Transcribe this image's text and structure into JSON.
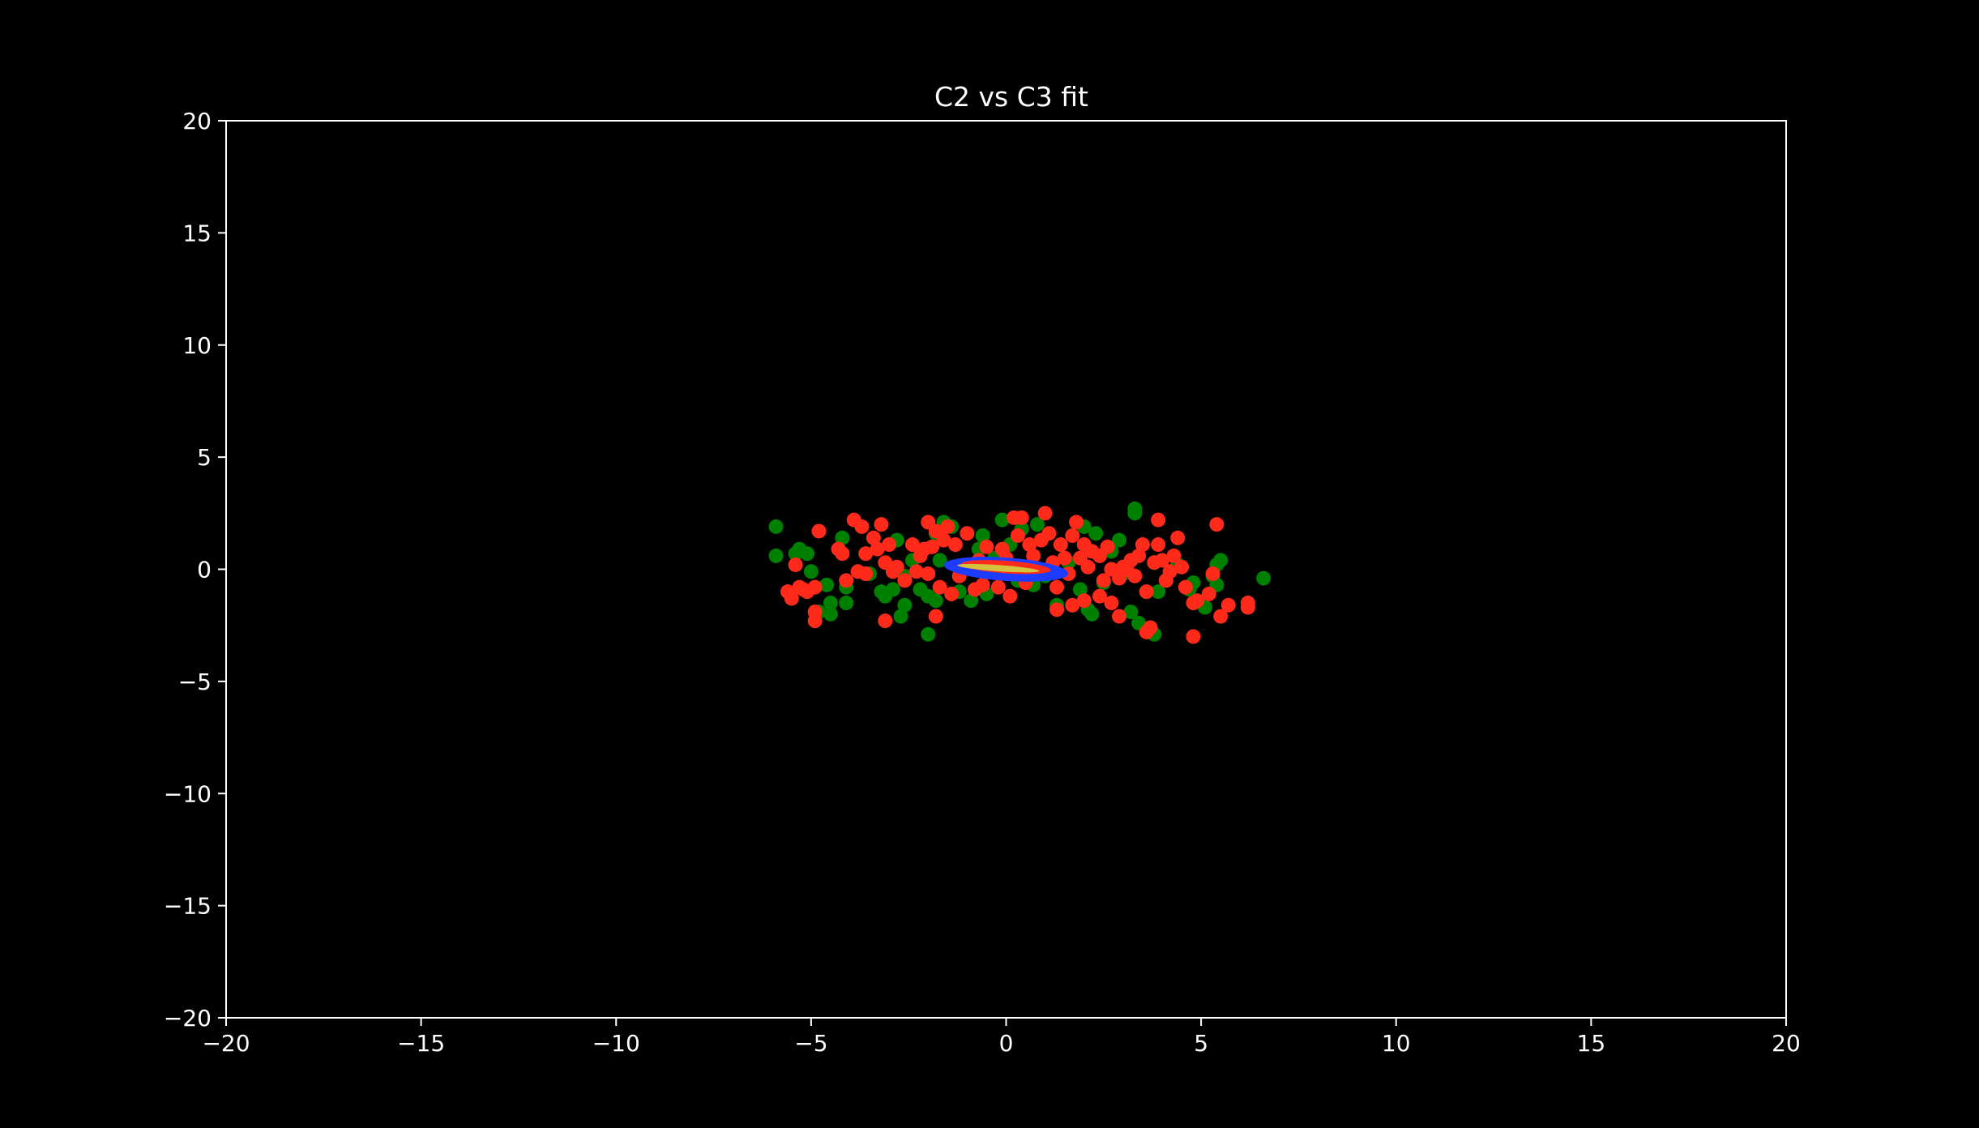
{
  "colors": {
    "background": "#000000",
    "axis": "#ffffff",
    "class_a": "#008000",
    "class_b": "#ff2a1a",
    "fit_outer": "#1e3cff",
    "fit_mid": "#ff2a1a",
    "fit_inner": "#d4c43c"
  },
  "chart_data": {
    "type": "scatter",
    "title": "C2 vs C3 fit",
    "xlabel": "",
    "ylabel": "",
    "xlim": [
      -20,
      20
    ],
    "ylim": [
      -20,
      20
    ],
    "xticks": [
      -20,
      -15,
      -10,
      -5,
      0,
      5,
      10,
      15,
      20
    ],
    "yticks": [
      -20,
      -15,
      -10,
      -5,
      0,
      5,
      10,
      15,
      20
    ],
    "xtick_labels": [
      "−20",
      "−15",
      "−10",
      "−5",
      "0",
      "5",
      "10",
      "15",
      "20"
    ],
    "ytick_labels": [
      "−20",
      "−15",
      "−10",
      "−5",
      "0",
      "5",
      "10",
      "15",
      "20"
    ],
    "grid": false,
    "series": [
      {
        "color": "#008000",
        "points": [
          [
            -5.9,
            1.9
          ],
          [
            -5.9,
            0.6
          ],
          [
            -5.4,
            0.7
          ],
          [
            -5.3,
            0.9
          ],
          [
            -5.1,
            0.7
          ],
          [
            -5.0,
            -0.1
          ],
          [
            -4.8,
            -1.9
          ],
          [
            -4.6,
            -0.7
          ],
          [
            -4.5,
            -2.0
          ],
          [
            -4.5,
            -1.5
          ],
          [
            -4.2,
            1.4
          ],
          [
            -4.1,
            -0.8
          ],
          [
            -4.1,
            -1.5
          ],
          [
            -3.5,
            -0.2
          ],
          [
            -3.2,
            -1.0
          ],
          [
            -3.1,
            -1.2
          ],
          [
            -2.9,
            -0.9
          ],
          [
            -2.8,
            1.3
          ],
          [
            -2.7,
            -2.1
          ],
          [
            -2.6,
            -1.6
          ],
          [
            -2.6,
            -0.3
          ],
          [
            -2.4,
            0.4
          ],
          [
            -2.2,
            -0.9
          ],
          [
            -2.0,
            -1.2
          ],
          [
            -2.0,
            -2.9
          ],
          [
            -1.8,
            1.6
          ],
          [
            -1.8,
            -1.4
          ],
          [
            -1.7,
            0.4
          ],
          [
            -1.6,
            2.1
          ],
          [
            -1.4,
            1.9
          ],
          [
            -1.2,
            -1.0
          ],
          [
            -0.9,
            -1.4
          ],
          [
            -0.7,
            0.9
          ],
          [
            -0.6,
            1.5
          ],
          [
            -0.5,
            -1.1
          ],
          [
            -0.3,
            0.5
          ],
          [
            -0.1,
            2.2
          ],
          [
            0.1,
            1.1
          ],
          [
            0.3,
            -0.5
          ],
          [
            0.4,
            1.8
          ],
          [
            0.7,
            -0.7
          ],
          [
            0.8,
            2.0
          ],
          [
            1.0,
            -0.3
          ],
          [
            1.3,
            -1.6
          ],
          [
            1.6,
            0.3
          ],
          [
            1.9,
            -0.9
          ],
          [
            2.0,
            1.9
          ],
          [
            2.1,
            -1.8
          ],
          [
            2.2,
            -2.0
          ],
          [
            2.3,
            1.6
          ],
          [
            2.5,
            -0.6
          ],
          [
            2.7,
            0.8
          ],
          [
            2.9,
            1.3
          ],
          [
            3.0,
            -0.2
          ],
          [
            3.2,
            -1.9
          ],
          [
            3.3,
            2.5
          ],
          [
            3.3,
            2.7
          ],
          [
            3.4,
            -2.4
          ],
          [
            3.6,
            -1.0
          ],
          [
            3.8,
            0.3
          ],
          [
            3.8,
            -2.9
          ],
          [
            3.9,
            -1.0
          ],
          [
            4.1,
            -0.5
          ],
          [
            4.4,
            0.2
          ],
          [
            4.7,
            -0.9
          ],
          [
            4.8,
            -0.6
          ],
          [
            5.1,
            -1.7
          ],
          [
            5.3,
            -0.3
          ],
          [
            5.4,
            -0.7
          ],
          [
            5.4,
            0.2
          ],
          [
            5.5,
            0.4
          ],
          [
            6.6,
            -0.4
          ]
        ]
      },
      {
        "color": "#ff2a1a",
        "points": [
          [
            -5.6,
            -1.0
          ],
          [
            -5.5,
            -1.3
          ],
          [
            -5.4,
            0.2
          ],
          [
            -5.3,
            -0.8
          ],
          [
            -5.2,
            -0.9
          ],
          [
            -5.1,
            -1.0
          ],
          [
            -4.9,
            -1.9
          ],
          [
            -4.9,
            -2.3
          ],
          [
            -4.9,
            -0.8
          ],
          [
            -4.8,
            1.7
          ],
          [
            -4.3,
            0.9
          ],
          [
            -4.2,
            0.7
          ],
          [
            -4.1,
            -0.5
          ],
          [
            -3.9,
            2.2
          ],
          [
            -3.8,
            -0.1
          ],
          [
            -3.7,
            1.9
          ],
          [
            -3.6,
            0.7
          ],
          [
            -3.6,
            -0.2
          ],
          [
            -3.4,
            1.4
          ],
          [
            -3.3,
            0.9
          ],
          [
            -3.2,
            2.0
          ],
          [
            -3.1,
            -2.3
          ],
          [
            -3.1,
            0.3
          ],
          [
            -3.0,
            1.1
          ],
          [
            -2.9,
            -0.1
          ],
          [
            -2.8,
            0.1
          ],
          [
            -2.6,
            -0.5
          ],
          [
            -2.4,
            1.1
          ],
          [
            -2.3,
            -0.1
          ],
          [
            -2.2,
            0.6
          ],
          [
            -2.1,
            0.9
          ],
          [
            -2.0,
            2.1
          ],
          [
            -2.0,
            -0.2
          ],
          [
            -1.9,
            1.0
          ],
          [
            -1.8,
            1.7
          ],
          [
            -1.8,
            -2.1
          ],
          [
            -1.7,
            -0.8
          ],
          [
            -1.6,
            1.3
          ],
          [
            -1.5,
            1.9
          ],
          [
            -1.4,
            -1.1
          ],
          [
            -1.3,
            1.1
          ],
          [
            -1.2,
            -0.3
          ],
          [
            -1.0,
            1.6
          ],
          [
            -0.8,
            -0.9
          ],
          [
            -0.7,
            0.4
          ],
          [
            -0.6,
            -0.7
          ],
          [
            -0.5,
            1.0
          ],
          [
            -0.4,
            0.2
          ],
          [
            -0.2,
            -0.8
          ],
          [
            -0.1,
            0.9
          ],
          [
            0.0,
            0.5
          ],
          [
            0.1,
            -1.2
          ],
          [
            0.2,
            2.3
          ],
          [
            0.3,
            1.5
          ],
          [
            0.3,
            0.0
          ],
          [
            0.4,
            2.3
          ],
          [
            0.5,
            -0.6
          ],
          [
            0.6,
            1.1
          ],
          [
            0.7,
            0.6
          ],
          [
            0.8,
            -0.1
          ],
          [
            0.9,
            1.3
          ],
          [
            1.0,
            2.5
          ],
          [
            1.1,
            1.6
          ],
          [
            1.2,
            0.3
          ],
          [
            1.3,
            -1.8
          ],
          [
            1.3,
            -0.8
          ],
          [
            1.4,
            1.1
          ],
          [
            1.5,
            0.5
          ],
          [
            1.6,
            -0.2
          ],
          [
            1.7,
            1.5
          ],
          [
            1.7,
            -1.6
          ],
          [
            1.8,
            2.1
          ],
          [
            1.9,
            0.5
          ],
          [
            2.0,
            -1.4
          ],
          [
            2.0,
            1.1
          ],
          [
            2.1,
            0.1
          ],
          [
            2.2,
            0.8
          ],
          [
            2.4,
            -1.2
          ],
          [
            2.4,
            0.6
          ],
          [
            2.5,
            -0.5
          ],
          [
            2.6,
            1.0
          ],
          [
            2.7,
            -1.5
          ],
          [
            2.7,
            0.0
          ],
          [
            2.9,
            -2.1
          ],
          [
            2.9,
            -0.4
          ],
          [
            3.0,
            0.1
          ],
          [
            3.1,
            0.0
          ],
          [
            3.2,
            0.4
          ],
          [
            3.3,
            -0.3
          ],
          [
            3.4,
            0.6
          ],
          [
            3.5,
            1.1
          ],
          [
            3.6,
            -1.0
          ],
          [
            3.6,
            -2.8
          ],
          [
            3.7,
            -2.6
          ],
          [
            3.8,
            0.3
          ],
          [
            3.9,
            1.1
          ],
          [
            3.9,
            2.2
          ],
          [
            4.0,
            0.4
          ],
          [
            4.1,
            -0.5
          ],
          [
            4.2,
            -0.1
          ],
          [
            4.3,
            0.6
          ],
          [
            4.4,
            1.4
          ],
          [
            4.5,
            0.1
          ],
          [
            4.6,
            -0.8
          ],
          [
            4.8,
            -1.5
          ],
          [
            4.8,
            -3.0
          ],
          [
            4.9,
            -1.4
          ],
          [
            5.2,
            -1.1
          ],
          [
            5.3,
            -0.2
          ],
          [
            5.4,
            2.0
          ],
          [
            5.5,
            -2.1
          ],
          [
            5.7,
            -1.6
          ],
          [
            6.2,
            -1.5
          ],
          [
            6.2,
            -1.7
          ]
        ]
      }
    ],
    "fit_ellipses": [
      {
        "color": "#1e3cff",
        "cx": 0.0,
        "cy": 0.0,
        "rx": 1.6,
        "ry": 0.52,
        "angle_deg": -4
      },
      {
        "color": "#ff2a1a",
        "cx": 0.0,
        "cy": 0.1,
        "rx": 1.15,
        "ry": 0.28,
        "angle_deg": -4
      },
      {
        "color": "#d4c43c",
        "cx": -0.2,
        "cy": 0.05,
        "rx": 1.05,
        "ry": 0.14,
        "angle_deg": -4
      }
    ]
  }
}
